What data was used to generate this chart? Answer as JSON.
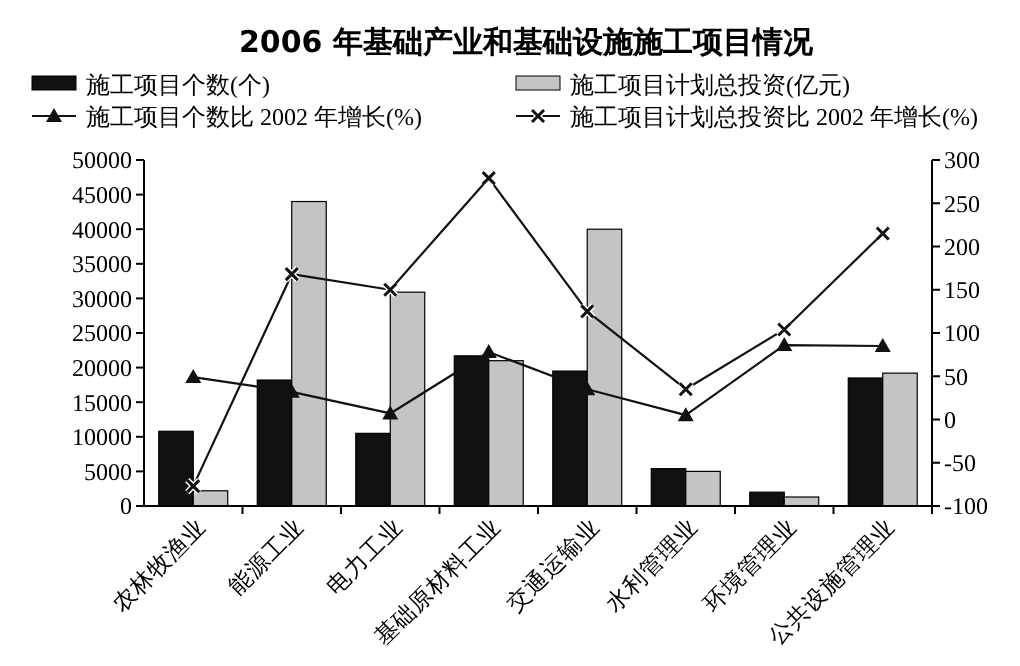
{
  "chart_data": {
    "type": "bar",
    "title": "2006 年基础产业和基础设施施工项目情况",
    "categories": [
      "农林牧渔业",
      "能源工业",
      "电力工业",
      "基础原材料工业",
      "交通运输业",
      "水利管理业",
      "环境管理业",
      "公共设施管理业"
    ],
    "series": [
      {
        "name": "施工项目个数(个)",
        "color": "#111111",
        "values": [
          10800,
          18200,
          10500,
          21700,
          19500,
          5400,
          2000,
          18500
        ]
      },
      {
        "name": "施工项目计划总投资(亿元)",
        "color": "#c4c4c4",
        "values": [
          2200,
          44000,
          30900,
          21000,
          40000,
          5000,
          1300,
          19200
        ]
      },
      {
        "name": "施工项目个数比 2002 年增长(%)",
        "type": "line",
        "axis": "y2",
        "marker": "triangle",
        "color": "#111111",
        "values": [
          49,
          32,
          7,
          78,
          35,
          5,
          86,
          85
        ]
      },
      {
        "name": "施工项目计划总投资比 2002 年增长(%)",
        "type": "line",
        "axis": "y2",
        "marker": "cross",
        "color": "#111111",
        "values": [
          -77,
          168,
          150,
          279,
          125,
          35,
          104,
          215
        ]
      }
    ],
    "ylim": [
      0,
      50000
    ],
    "yticks": [
      0,
      5000,
      10000,
      15000,
      20000,
      25000,
      30000,
      35000,
      40000,
      45000,
      50000
    ],
    "y2lim": [
      -100,
      300
    ],
    "y2ticks": [
      -100,
      -50,
      0,
      50,
      100,
      150,
      200,
      250,
      300
    ],
    "legend": "top",
    "grid": false
  }
}
